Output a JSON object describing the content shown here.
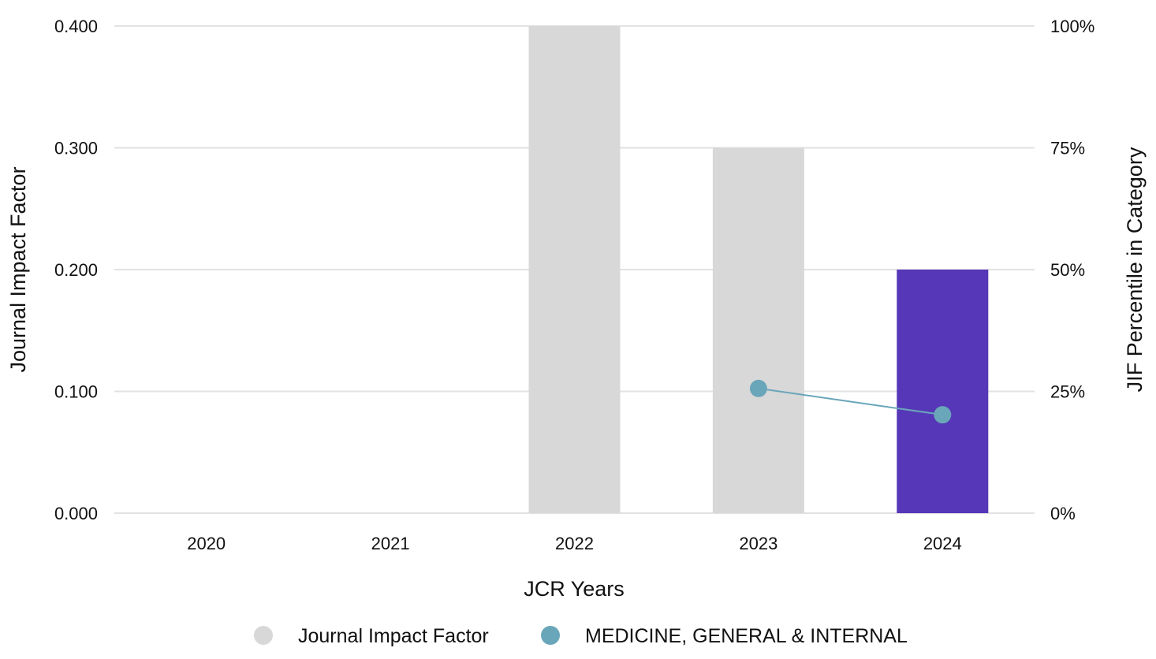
{
  "chart_data": {
    "type": "bar",
    "categories": [
      "2020",
      "2021",
      "2022",
      "2023",
      "2024"
    ],
    "xlabel": "JCR Years",
    "ylabel": "Journal Impact Factor",
    "y2label": "JIF Percentile in Category",
    "ylim": [
      0,
      0.4
    ],
    "y2lim": [
      0,
      100
    ],
    "yticks": [
      "0.000",
      "0.100",
      "0.200",
      "0.300",
      "0.400"
    ],
    "y2ticks": [
      "0%",
      "25%",
      "50%",
      "75%",
      "100%"
    ],
    "grid": true,
    "legend_position": "bottom",
    "series": [
      {
        "name": "Journal Impact Factor",
        "type": "bar",
        "axis": "left",
        "values": [
          null,
          null,
          0.4,
          0.3,
          0.2
        ],
        "color": "#d8d8d8",
        "highlight_color": "#5637b8",
        "highlight_index": 4
      },
      {
        "name": "MEDICINE, GENERAL & INTERNAL",
        "type": "line",
        "axis": "right",
        "values": [
          null,
          null,
          null,
          25.6,
          20.2
        ],
        "color": "#6aa6b9"
      }
    ]
  }
}
